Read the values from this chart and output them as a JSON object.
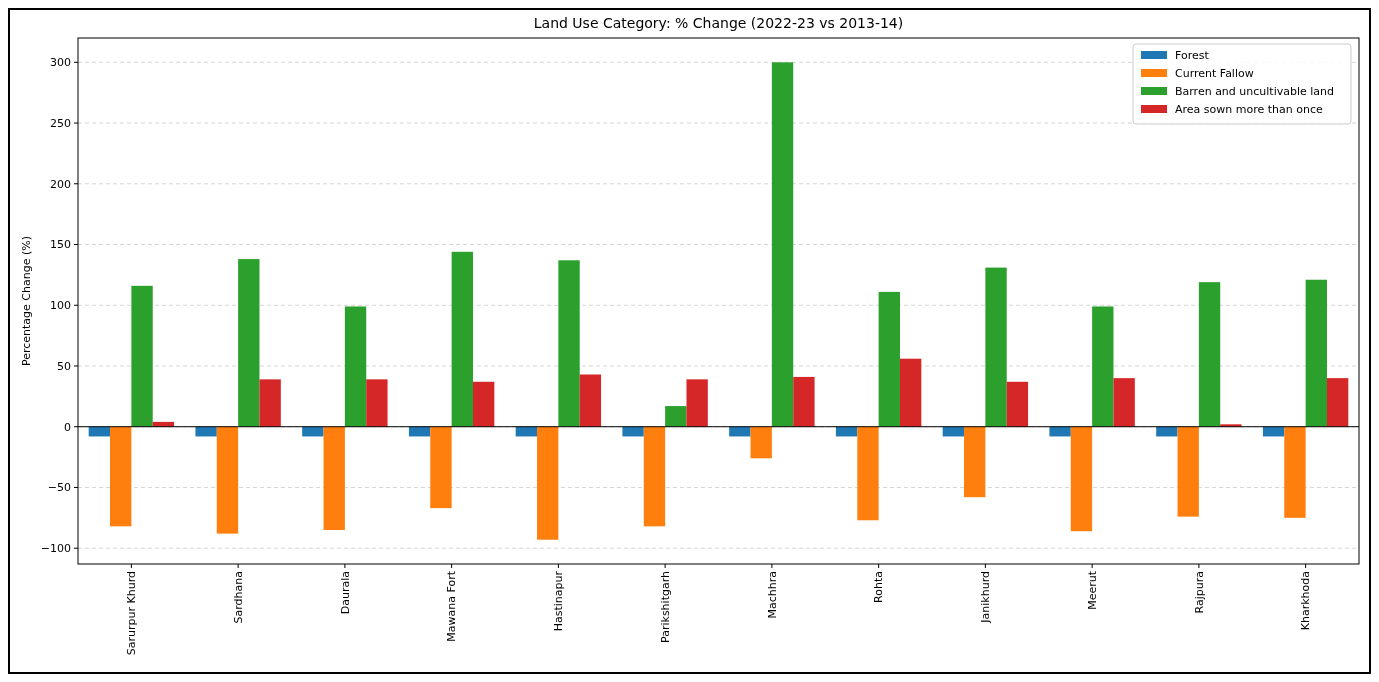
{
  "chart_data": {
    "type": "bar",
    "title": "Land Use Category: % Change (2022-23 vs 2013-14)",
    "ylabel": "Percentage Change (%)",
    "categories": [
      "Sarurpur Khurd",
      "Sardhana",
      "Daurala",
      "Mawana Fort",
      "Hastinapur",
      "Parikshitgarh",
      "Machhra",
      "Rohta",
      "Janikhurd",
      "Meerut",
      "Rajpura",
      "Kharkhoda"
    ],
    "series": [
      {
        "name": "Forest",
        "color": "#1f77b4",
        "values": [
          -8,
          -8,
          -8,
          -8,
          -8,
          -8,
          -8,
          -8,
          -8,
          -8,
          -8,
          -8
        ]
      },
      {
        "name": "Current Fallow",
        "color": "#ff7f0e",
        "values": [
          -82,
          -88,
          -85,
          -67,
          -93,
          -82,
          -26,
          -77,
          -58,
          -86,
          -74,
          -75
        ]
      },
      {
        "name": "Barren and uncultivable land",
        "color": "#2ca02c",
        "values": [
          116,
          138,
          99,
          144,
          137,
          17,
          300,
          111,
          131,
          99,
          119,
          121
        ]
      },
      {
        "name": "Area sown more than once",
        "color": "#d62728",
        "values": [
          4,
          39,
          39,
          37,
          43,
          39,
          41,
          56,
          37,
          40,
          2,
          40
        ]
      }
    ],
    "ylim": [
      -113,
      320
    ],
    "yticks": [
      {
        "value": -100,
        "label": "−100"
      },
      {
        "value": -50,
        "label": "−50"
      },
      0,
      50,
      100,
      150,
      200,
      250,
      300
    ],
    "ref_lines": [
      {
        "axis": "y",
        "value": 0,
        "color": "#000000"
      }
    ],
    "grid": "y",
    "legend": "top right"
  }
}
